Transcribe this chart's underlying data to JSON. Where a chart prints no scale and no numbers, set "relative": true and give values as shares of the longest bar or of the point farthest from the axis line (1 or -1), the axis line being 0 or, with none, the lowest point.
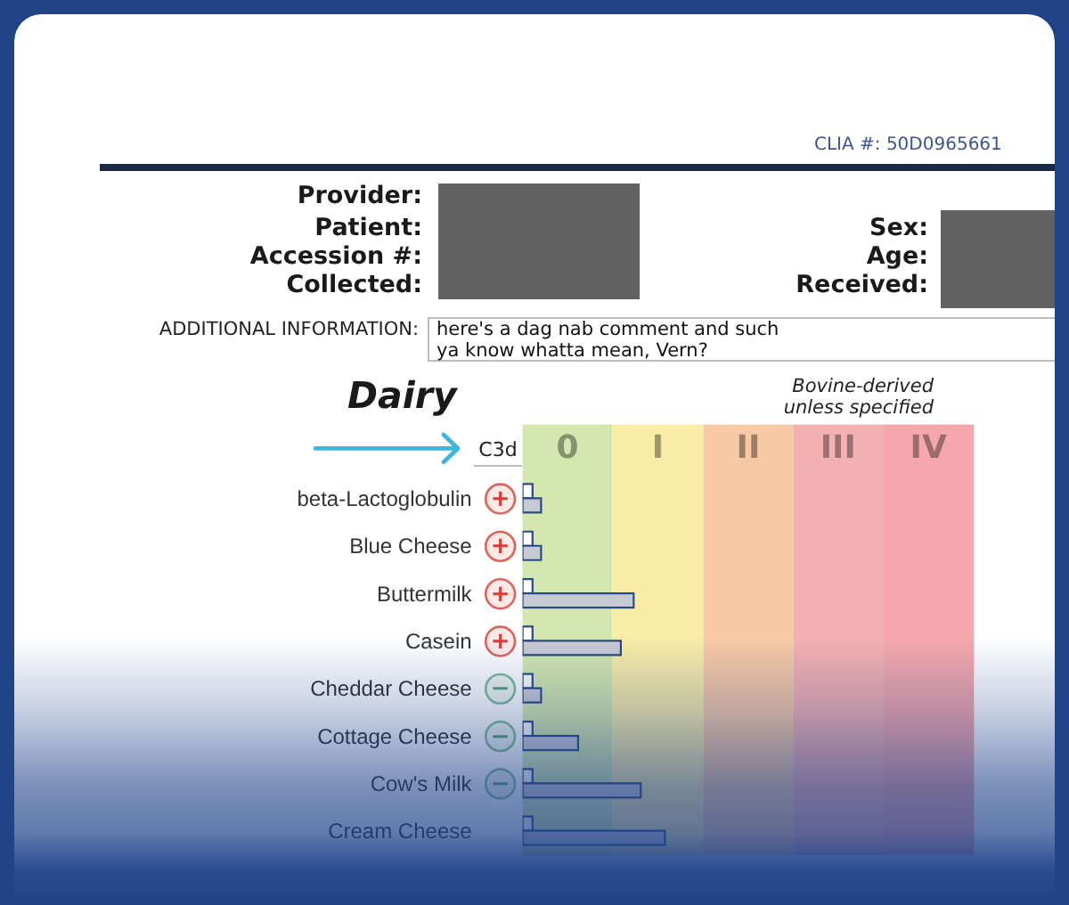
{
  "chart_data": {
    "type": "bar",
    "orientation": "horizontal",
    "relative": true,
    "title": "Dairy",
    "subtitle": "Bovine-derived\nunless specified",
    "categories": [
      "beta-Lactoglobulin",
      "Blue Cheese",
      "Buttermilk",
      "Casein",
      "Cheddar Cheese",
      "Cottage Cheese",
      "Cow's Milk",
      "Cream Cheese"
    ],
    "series": [
      {
        "color": "#ffffff",
        "values": [
          0.07,
          0.07,
          0.07,
          0.07,
          0.07,
          0.07,
          0.07,
          0.07
        ]
      },
      {
        "color": "#c6cad4",
        "values": [
          0.13,
          0.13,
          0.78,
          0.69,
          0.13,
          0.39,
          0.83,
          1
        ]
      }
    ],
    "bands": [
      {
        "axis": "x",
        "from": 0,
        "to": 0.63,
        "label": "0",
        "color": "#d3e7ae"
      },
      {
        "axis": "x",
        "from": 0.63,
        "to": 1.27,
        "label": "I",
        "color": "#f8eca7"
      },
      {
        "axis": "x",
        "from": 1.27,
        "to": 1.9,
        "label": "II",
        "color": "#f8c9a5"
      },
      {
        "axis": "x",
        "from": 1.9,
        "to": 2.53,
        "label": "III",
        "color": "#f5b1b1"
      },
      {
        "axis": "x",
        "from": 2.53,
        "to": 3.17,
        "label": "IV",
        "color": "#f4a8ac"
      }
    ],
    "annotations": [
      "CLIA #: 50D0965661",
      "Provider:",
      "Patient:",
      "Accession #:",
      "Collected:",
      "Sex:",
      "Age:",
      "Received:",
      "ADDITIONAL INFORMATION:",
      "here's a dag nab comment and such\nya know whatta mean, Vern?",
      "C3d",
      "+",
      "+",
      "+",
      "+",
      "−",
      "−",
      "−"
    ]
  }
}
